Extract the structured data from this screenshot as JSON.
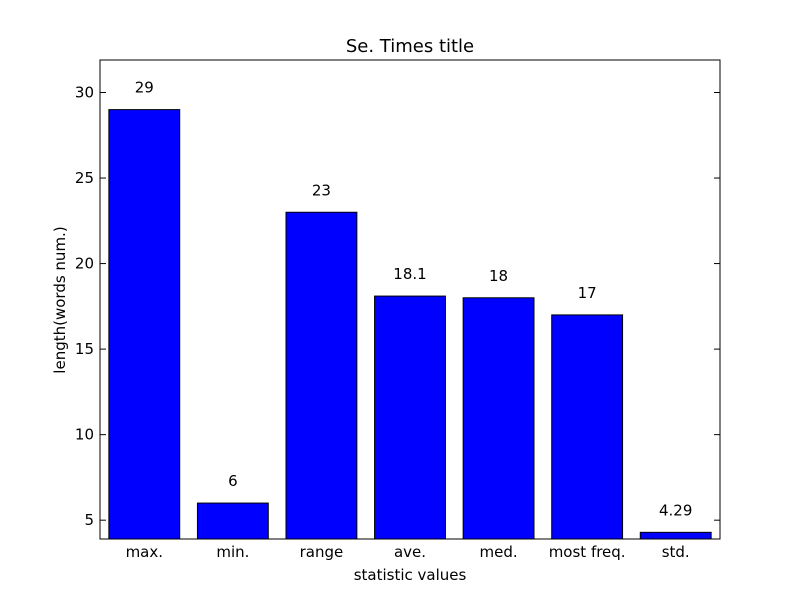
{
  "chart_data": {
    "type": "bar",
    "title": "Se. Times title",
    "xlabel": "statistic values",
    "ylabel": "length(words num.)",
    "categories": [
      "max.",
      "min.",
      "range",
      "ave.",
      "med.",
      "most freq.",
      "std."
    ],
    "values": [
      29,
      6,
      23,
      18.1,
      18,
      17,
      4.29
    ],
    "value_labels": [
      "29",
      "6",
      "23",
      "18.1",
      "18",
      "17",
      "4.29"
    ],
    "yticks": [
      5,
      10,
      15,
      20,
      25,
      30
    ],
    "ylim": [
      3.9,
      31.9
    ],
    "bar_color": "#0000ff",
    "grid": false
  }
}
